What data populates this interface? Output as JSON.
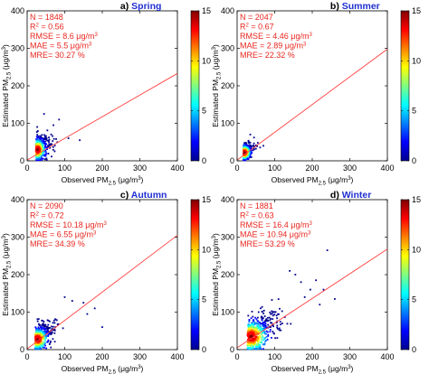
{
  "colormap": {
    "stops": [
      "#00008f",
      "#0000ff",
      "#0080ff",
      "#00ffff",
      "#80ff80",
      "#ffff00",
      "#ff8000",
      "#ff0000",
      "#800000"
    ],
    "ticks": [
      "0",
      "5",
      "10",
      "15"
    ]
  },
  "stat_color": "#e8261e",
  "title_color": "#1f2fd0",
  "chart_data": [
    {
      "type": "scatter",
      "panel_letter": "a)",
      "panel_name": "Spring",
      "xlabel": "Observed PM",
      "ylabel": "Estimated PM",
      "sub": "2.5",
      "unit": "(μg/m",
      "unit_sup": "3",
      "unit_end": ")",
      "xlim": [
        0,
        400
      ],
      "ylim": [
        0,
        400
      ],
      "xticks": [
        "0",
        "100",
        "200",
        "300",
        "400"
      ],
      "yticks": [
        "0",
        "100",
        "200",
        "300",
        "400"
      ],
      "fit_line": {
        "x": [
          0,
          400
        ],
        "y": [
          2,
          233
        ]
      },
      "stats": {
        "n": "N = 1848",
        "r2": "R",
        "r2_sup": "2",
        "r2_val": " = 0.56",
        "rmse": "RMSE = 8.6 μg/m",
        "rmse_sup": "3",
        "mae": "MAE = 5.5 μg/m",
        "mae_sup": "3",
        "mre": "MRE= 30.27 %"
      },
      "points": {
        "core": [
          28,
          30
        ],
        "spread": [
          12,
          16
        ],
        "count": 420,
        "outliers": [
          [
            45,
            125
          ],
          [
            70,
            95
          ],
          [
            110,
            60
          ],
          [
            85,
            110
          ],
          [
            140,
            55
          ]
        ]
      }
    },
    {
      "type": "scatter",
      "panel_letter": "b)",
      "panel_name": "Summer",
      "xlabel": "Observed PM",
      "ylabel": "Estimated PM",
      "sub": "2.5",
      "unit": "(μg/m",
      "unit_sup": "3",
      "unit_end": ")",
      "xlim": [
        0,
        400
      ],
      "ylim": [
        0,
        400
      ],
      "xticks": [
        "0",
        "100",
        "200",
        "300",
        "400"
      ],
      "yticks": [
        "0",
        "100",
        "200",
        "300",
        "400"
      ],
      "fit_line": {
        "x": [
          0,
          400
        ],
        "y": [
          2,
          298
        ]
      },
      "stats": {
        "n": "N = 2047",
        "r2": "R",
        "r2_sup": "2",
        "r2_val": " = 0.67",
        "rmse": "RMSE = 4.46 μg/m",
        "rmse_sup": "3",
        "mae": "MAE = 2.89 μg/m",
        "mae_sup": "3",
        "mre": "MRE= 22.32 %"
      },
      "points": {
        "core": [
          20,
          22
        ],
        "spread": [
          9,
          11
        ],
        "count": 400,
        "outliers": [
          [
            45,
            62
          ],
          [
            55,
            48
          ],
          [
            70,
            40
          ],
          [
            35,
            70
          ]
        ]
      }
    },
    {
      "type": "scatter",
      "panel_letter": "c)",
      "panel_name": "Autumn",
      "xlabel": "Observed PM",
      "ylabel": "Estimated PM",
      "sub": "2.5",
      "unit": "(μg/m",
      "unit_sup": "3",
      "unit_end": ")",
      "xlim": [
        0,
        400
      ],
      "ylim": [
        0,
        400
      ],
      "xticks": [
        "0",
        "100",
        "200",
        "300",
        "400"
      ],
      "yticks": [
        "0",
        "100",
        "200",
        "300",
        "400"
      ],
      "fit_line": {
        "x": [
          0,
          400
        ],
        "y": [
          2,
          305
        ]
      },
      "stats": {
        "n": "N = 2090",
        "r2": "R",
        "r2_sup": "2",
        "r2_val": " = 0.72",
        "rmse": "RMSE = 10.18 μg/m",
        "rmse_sup": "3",
        "mae": "MAE = 6.55 μg/m",
        "mae_sup": "3",
        "mre": "MRE= 34.39 %"
      },
      "points": {
        "core": [
          28,
          28
        ],
        "spread": [
          16,
          16
        ],
        "count": 460,
        "outliers": [
          [
            160,
            95
          ],
          [
            150,
            125
          ],
          [
            180,
            110
          ],
          [
            200,
            60
          ],
          [
            120,
            130
          ],
          [
            100,
            140
          ]
        ]
      }
    },
    {
      "type": "scatter",
      "panel_letter": "d)",
      "panel_name": "Winter",
      "xlabel": "Observed PM",
      "ylabel": "Estimated PM",
      "sub": "2.5",
      "unit": "(μg/m",
      "unit_sup": "3",
      "unit_end": ")",
      "xlim": [
        0,
        400
      ],
      "ylim": [
        0,
        400
      ],
      "xticks": [
        "0",
        "100",
        "200",
        "300",
        "400"
      ],
      "yticks": [
        "0",
        "100",
        "200",
        "300",
        "400"
      ],
      "fit_line": {
        "x": [
          0,
          400
        ],
        "y": [
          5,
          268
        ]
      },
      "stats": {
        "n": "N = 1881",
        "r2": "R",
        "r2_sup": "2",
        "r2_val": " = 0.63",
        "rmse": "RMSE = 16.4 μg/m",
        "rmse_sup": "3",
        "mae": "MAE = 10.94 μg/m",
        "mae_sup": "3",
        "mre": "MRE= 53.29 %"
      },
      "points": {
        "core": [
          38,
          35
        ],
        "spread": [
          26,
          24
        ],
        "count": 560,
        "outliers": [
          [
            210,
            185
          ],
          [
            230,
            160
          ],
          [
            170,
            180
          ],
          [
            155,
            200
          ],
          [
            260,
            135
          ],
          [
            195,
            160
          ],
          [
            240,
            265
          ],
          [
            180,
            140
          ],
          [
            220,
            120
          ],
          [
            140,
            210
          ]
        ]
      }
    }
  ]
}
